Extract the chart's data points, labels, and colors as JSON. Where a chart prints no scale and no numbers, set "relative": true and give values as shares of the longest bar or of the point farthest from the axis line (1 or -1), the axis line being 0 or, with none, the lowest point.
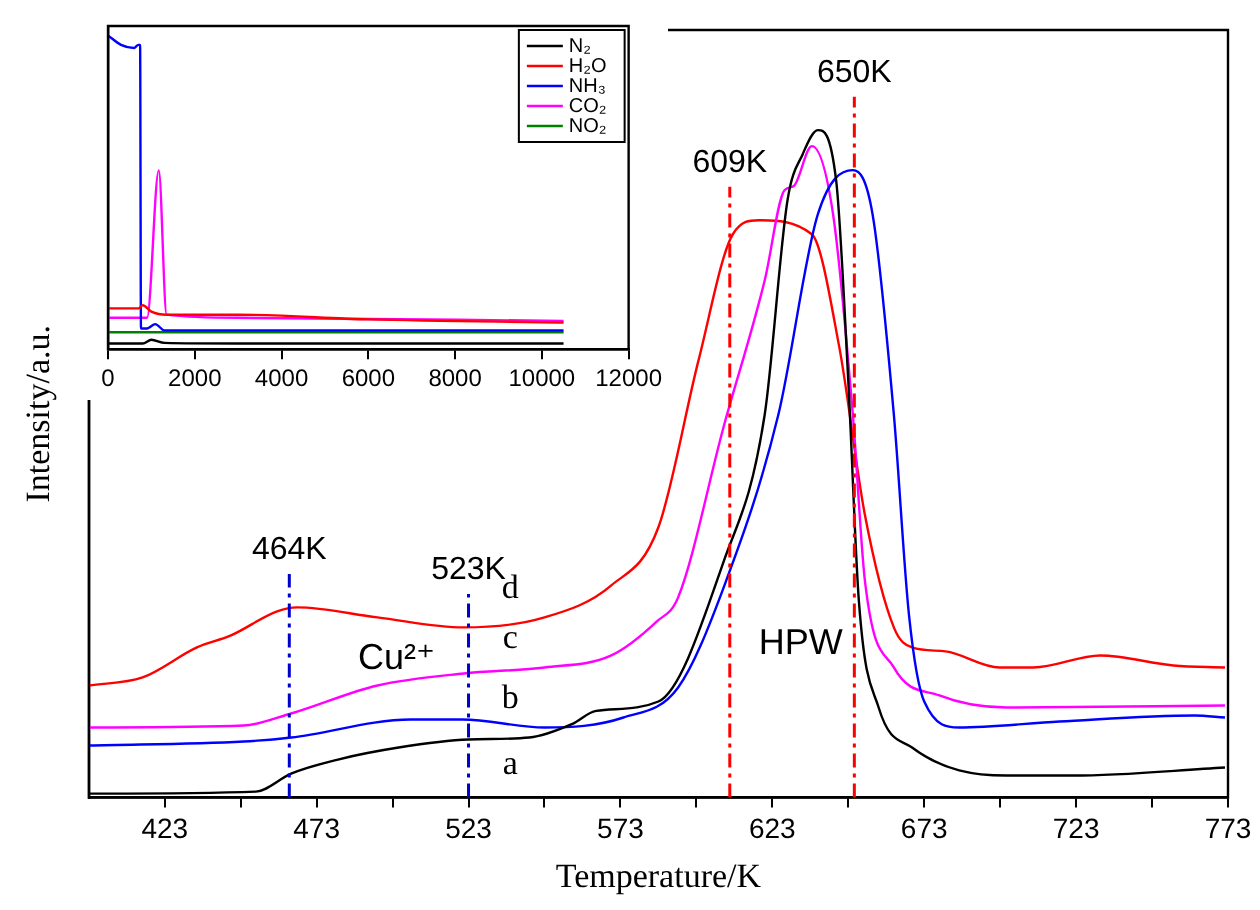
{
  "chart_data": [
    {
      "type": "line",
      "xlabel": "Temperature/K",
      "ylabel": "Intensity/a.u.",
      "relative": true,
      "legend": false,
      "xlim": [
        398,
        773
      ],
      "xticks": [
        423,
        {
          "value": 448,
          "label": null
        },
        473,
        {
          "value": 498,
          "label": null
        },
        523,
        {
          "value": 548,
          "label": null
        },
        573,
        {
          "value": 598,
          "label": null
        },
        623,
        {
          "value": 648,
          "label": null
        },
        673,
        {
          "value": 698,
          "label": null
        },
        723,
        {
          "value": 748,
          "label": null
        },
        773
      ],
      "line_style": "solid",
      "series": [
        {
          "name": "a",
          "color": "#000000",
          "x": [
            398,
            453,
            464.6,
            480,
            500,
            523,
            543,
            557,
            565,
            585.5,
            607,
            620.5,
            628,
            633,
            638,
            644,
            648,
            651.5,
            658,
            669,
            700,
            722,
            772
          ],
          "values": [
            0.006,
            0.009,
            0.036,
            0.057,
            0.075,
            0.087,
            0.09,
            0.11,
            0.13,
            0.144,
            0.354,
            0.574,
            0.895,
            0.964,
            1.0,
            0.925,
            0.625,
            0.294,
            0.135,
            0.075,
            0.033,
            0.033,
            0.045
          ]
        },
        {
          "name": "b",
          "color": "#0000ff",
          "x": [
            398,
            449,
            464.6,
            504,
            521,
            548,
            574,
            592,
            607,
            625,
            638,
            649.5,
            656,
            663,
            668,
            673,
            684.5,
            717.5,
            762,
            772
          ],
          "values": [
            0.078,
            0.084,
            0.09,
            0.117,
            0.117,
            0.105,
            0.12,
            0.165,
            0.315,
            0.574,
            0.874,
            0.94,
            0.874,
            0.574,
            0.273,
            0.144,
            0.105,
            0.114,
            0.123,
            0.12
          ]
        },
        {
          "name": "c",
          "color": "#ff00ff",
          "x": [
            398,
            449,
            464.6,
            493,
            521.4,
            548,
            570,
            585,
            592,
            607,
            620.5,
            627,
            630,
            636,
            643,
            649.5,
            653.5,
            663,
            678,
            700,
            772
          ],
          "values": [
            0.105,
            0.108,
            0.126,
            0.168,
            0.186,
            0.195,
            0.213,
            0.264,
            0.3,
            0.556,
            0.775,
            0.91,
            0.916,
            0.976,
            0.874,
            0.574,
            0.324,
            0.195,
            0.153,
            0.135,
            0.138
          ]
        },
        {
          "name": "d",
          "color": "#ff0000",
          "x": [
            398,
            415.7,
            433.6,
            444.8,
            460,
            466.6,
            493,
            521.4,
            548,
            570,
            585.5,
            598.7,
            610,
            618.5,
            636,
            645,
            653.5,
            663,
            669,
            680,
            697.8,
            709,
            731,
            755,
            772
          ],
          "values": [
            0.168,
            0.18,
            0.225,
            0.243,
            0.279,
            0.285,
            0.27,
            0.255,
            0.27,
            0.318,
            0.405,
            0.655,
            0.844,
            0.865,
            0.844,
            0.676,
            0.423,
            0.255,
            0.225,
            0.219,
            0.195,
            0.195,
            0.213,
            0.198,
            0.195
          ]
        }
      ],
      "ref_lines": [
        {
          "axis": "x",
          "value": 464,
          "label": "464K",
          "color": "#0000cc",
          "line_style": "dashed"
        },
        {
          "axis": "x",
          "value": 523,
          "label": "523K",
          "color": "#0000cc",
          "line_style": "dashed"
        },
        {
          "axis": "x",
          "value": 609,
          "label": "609K",
          "color": "#ff0000",
          "line_style": "dashed"
        },
        {
          "axis": "x",
          "value": 650,
          "label": "650K",
          "color": "#ff0000",
          "line_style": "dashed"
        }
      ],
      "annotations": [
        "Cu²⁺",
        "HPW"
      ]
    },
    {
      "type": "line",
      "relative": true,
      "legend": "top right",
      "xlim": [
        0,
        12000
      ],
      "xticks": [
        0,
        2000,
        4000,
        6000,
        8000,
        10000,
        12000
      ],
      "series": [
        {
          "name": "N₂",
          "color": "#000000",
          "x": [
            0,
            800,
            1000,
            1300,
            3000,
            10500
          ],
          "values": [
            0.018,
            0.018,
            0.03,
            0.02,
            0.018,
            0.018
          ]
        },
        {
          "name": "H₂O",
          "color": "#ff0000",
          "x": [
            0,
            700,
            800,
            1000,
            1350,
            3000,
            6000,
            10500
          ],
          "values": [
            0.13,
            0.13,
            0.14,
            0.12,
            0.11,
            0.11,
            0.095,
            0.085
          ]
        },
        {
          "name": "NH₃",
          "color": "#0000ff",
          "x": [
            0,
            300,
            600,
            700,
            740,
            760,
            900,
            1090,
            1300,
            3000,
            10500
          ],
          "values": [
            1.0,
            0.97,
            0.96,
            0.97,
            0.97,
            0.066,
            0.066,
            0.08,
            0.06,
            0.06,
            0.06
          ]
        },
        {
          "name": "CO₂",
          "color": "#ff00ff",
          "x": [
            0,
            900,
            1170,
            1350,
            3000,
            10500
          ],
          "values": [
            0.1,
            0.1,
            0.57,
            0.11,
            0.1,
            0.09
          ]
        },
        {
          "name": "NO₂",
          "color": "#008000",
          "x": [
            0,
            10500
          ],
          "values": [
            0.054,
            0.054
          ]
        }
      ]
    }
  ]
}
